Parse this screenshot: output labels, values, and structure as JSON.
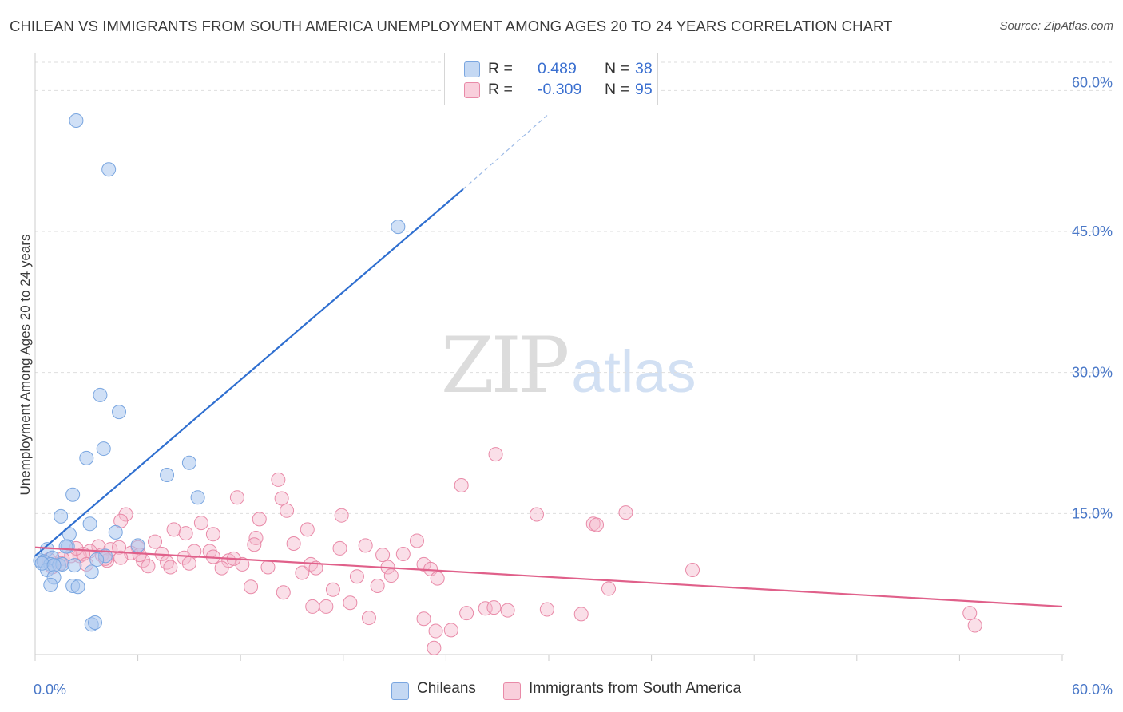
{
  "title": "CHILEAN VS IMMIGRANTS FROM SOUTH AMERICA UNEMPLOYMENT AMONG AGES 20 TO 24 YEARS CORRELATION CHART",
  "source": "Source: ZipAtlas.com",
  "watermark": {
    "zip": "ZIP",
    "atlas": "atlas"
  },
  "legend": {
    "rows": [
      {
        "r_label": "R =",
        "r_value": "0.489",
        "n_label": "N =",
        "n_value": "38",
        "color": "#a9c6ee"
      },
      {
        "r_label": "R =",
        "r_value": "-0.309",
        "n_label": "N =",
        "n_value": "95",
        "color": "#f5b8cb"
      }
    ],
    "bottom": [
      "Chileans",
      "Immigrants from South America"
    ]
  },
  "colors": {
    "blue_fill": "#a9c6ee",
    "blue_stroke": "#7aa6e0",
    "blue_line": "#2f6fd0",
    "pink_fill": "#f5b8cb",
    "pink_stroke": "#e98aa8",
    "pink_line": "#e0608a",
    "grid": "#dedede",
    "tick_text": "#4a78c8"
  },
  "chart_data": {
    "type": "scatter",
    "title": "CHILEAN VS IMMIGRANTS FROM SOUTH AMERICA UNEMPLOYMENT AMONG AGES 20 TO 24 YEARS CORRELATION CHART",
    "xlabel": "",
    "ylabel": "Unemployment Among Ages 20 to 24 years",
    "xlim": [
      0,
      60
    ],
    "ylim": [
      0,
      63
    ],
    "x_tick_labels": [
      "0.0%",
      "60.0%"
    ],
    "y_ticks": [
      15,
      30,
      45,
      60
    ],
    "y_tick_labels": [
      "15.0%",
      "30.0%",
      "45.0%",
      "60.0%"
    ],
    "grid": "horizontal dashed",
    "legend_position": "top-center",
    "series": [
      {
        "name": "Chileans",
        "r": 0.489,
        "n": 38,
        "trend": {
          "x": [
            0.0,
            25.0
          ],
          "y": [
            10.5,
            49.5
          ],
          "dashed_to": [
            30.0,
            57.5
          ]
        },
        "points": [
          [
            2.4,
            56.8
          ],
          [
            4.3,
            51.6
          ],
          [
            21.2,
            45.5
          ],
          [
            3.8,
            27.6
          ],
          [
            4.9,
            25.8
          ],
          [
            4.0,
            21.9
          ],
          [
            3.0,
            20.9
          ],
          [
            9.0,
            20.4
          ],
          [
            7.7,
            19.1
          ],
          [
            9.5,
            16.7
          ],
          [
            2.2,
            17.0
          ],
          [
            1.5,
            14.7
          ],
          [
            3.2,
            13.9
          ],
          [
            4.7,
            13.0
          ],
          [
            2.0,
            12.8
          ],
          [
            1.9,
            11.5
          ],
          [
            6.0,
            11.6
          ],
          [
            0.7,
            11.2
          ],
          [
            1.8,
            11.5
          ],
          [
            4.1,
            10.5
          ],
          [
            1.0,
            10.3
          ],
          [
            3.6,
            10.1
          ],
          [
            0.3,
            10.0
          ],
          [
            0.5,
            9.9
          ],
          [
            0.9,
            9.6
          ],
          [
            1.4,
            9.5
          ],
          [
            1.6,
            9.6
          ],
          [
            2.3,
            9.5
          ],
          [
            0.7,
            9.0
          ],
          [
            0.4,
            9.7
          ],
          [
            1.1,
            9.5
          ],
          [
            3.3,
            8.8
          ],
          [
            1.1,
            8.2
          ],
          [
            0.9,
            7.4
          ],
          [
            2.2,
            7.3
          ],
          [
            2.5,
            7.2
          ],
          [
            3.3,
            3.2
          ],
          [
            3.5,
            3.4
          ]
        ]
      },
      {
        "name": "Immigrants from South America",
        "r": -0.309,
        "n": 95,
        "trend": {
          "x": [
            0.0,
            60.0
          ],
          "y": [
            11.4,
            5.1
          ]
        },
        "points": [
          [
            26.9,
            21.3
          ],
          [
            14.2,
            18.6
          ],
          [
            24.9,
            18.0
          ],
          [
            11.8,
            16.7
          ],
          [
            14.4,
            16.6
          ],
          [
            5.3,
            14.9
          ],
          [
            14.7,
            15.3
          ],
          [
            17.9,
            14.8
          ],
          [
            29.3,
            14.9
          ],
          [
            34.5,
            15.1
          ],
          [
            5.0,
            14.2
          ],
          [
            13.1,
            14.4
          ],
          [
            9.7,
            14.0
          ],
          [
            32.6,
            13.9
          ],
          [
            32.8,
            13.8
          ],
          [
            8.1,
            13.3
          ],
          [
            15.9,
            13.3
          ],
          [
            8.8,
            12.9
          ],
          [
            10.4,
            12.8
          ],
          [
            12.9,
            12.4
          ],
          [
            22.3,
            12.1
          ],
          [
            7.0,
            12.0
          ],
          [
            12.8,
            11.7
          ],
          [
            15.1,
            11.8
          ],
          [
            19.3,
            11.6
          ],
          [
            17.8,
            11.3
          ],
          [
            6.0,
            11.4
          ],
          [
            10.2,
            11.0
          ],
          [
            21.5,
            10.7
          ],
          [
            20.3,
            10.6
          ],
          [
            3.7,
            11.5
          ],
          [
            4.4,
            11.2
          ],
          [
            4.9,
            11.4
          ],
          [
            3.2,
            11.0
          ],
          [
            2.1,
            10.5
          ],
          [
            3.9,
            10.6
          ],
          [
            5.6,
            10.8
          ],
          [
            7.4,
            10.7
          ],
          [
            8.7,
            10.3
          ],
          [
            10.4,
            10.4
          ],
          [
            11.3,
            10.0
          ],
          [
            2.6,
            10.5
          ],
          [
            1.6,
            10.2
          ],
          [
            2.8,
            10.7
          ],
          [
            5.0,
            10.3
          ],
          [
            6.3,
            10.0
          ],
          [
            7.7,
            9.8
          ],
          [
            9.0,
            9.7
          ],
          [
            12.1,
            9.6
          ],
          [
            16.1,
            9.6
          ],
          [
            22.7,
            9.6
          ],
          [
            0.5,
            9.9
          ],
          [
            1.5,
            9.7
          ],
          [
            4.2,
            10.0
          ],
          [
            6.6,
            9.4
          ],
          [
            7.9,
            9.3
          ],
          [
            10.9,
            9.2
          ],
          [
            13.6,
            9.3
          ],
          [
            16.4,
            9.2
          ],
          [
            20.6,
            9.3
          ],
          [
            23.1,
            9.1
          ],
          [
            38.4,
            9.0
          ],
          [
            1.0,
            9.3
          ],
          [
            3.0,
            9.6
          ],
          [
            15.6,
            8.7
          ],
          [
            18.8,
            8.3
          ],
          [
            20.8,
            8.4
          ],
          [
            23.5,
            8.1
          ],
          [
            12.6,
            7.2
          ],
          [
            17.4,
            6.9
          ],
          [
            20.0,
            7.3
          ],
          [
            33.5,
            7.0
          ],
          [
            14.5,
            6.6
          ],
          [
            17.0,
            5.1
          ],
          [
            18.4,
            5.5
          ],
          [
            16.2,
            5.1
          ],
          [
            26.3,
            4.9
          ],
          [
            27.6,
            4.7
          ],
          [
            26.8,
            5.0
          ],
          [
            29.9,
            4.8
          ],
          [
            31.9,
            4.3
          ],
          [
            25.2,
            4.4
          ],
          [
            22.7,
            3.8
          ],
          [
            19.5,
            3.9
          ],
          [
            24.3,
            2.6
          ],
          [
            23.4,
            2.5
          ],
          [
            23.3,
            0.7
          ],
          [
            54.6,
            4.4
          ],
          [
            54.9,
            3.1
          ],
          [
            4.1,
            10.2
          ],
          [
            9.3,
            11.0
          ],
          [
            11.6,
            10.2
          ],
          [
            2.4,
            11.3
          ],
          [
            0.8,
            10.1
          ],
          [
            6.1,
            10.6
          ]
        ]
      }
    ]
  }
}
